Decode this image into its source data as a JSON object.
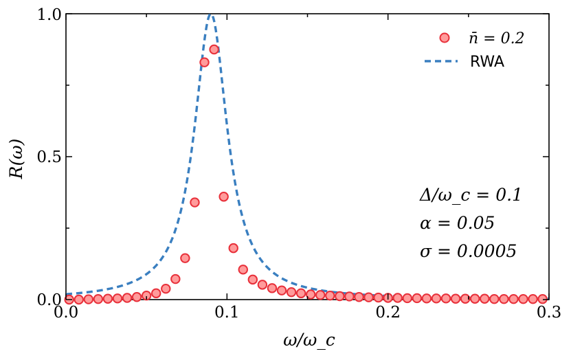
{
  "chart_data": {
    "type": "line",
    "title": "",
    "xlabel": "ω/ω_c",
    "ylabel": "R(ω)",
    "xlim": [
      0.0,
      0.3
    ],
    "ylim": [
      0.0,
      1.0
    ],
    "x_ticks": [
      0.0,
      0.1,
      0.2,
      0.3
    ],
    "x_tick_labels": [
      "0.0",
      "0.1",
      "0.2",
      "0.3"
    ],
    "y_ticks": [
      0.0,
      0.5,
      1.0
    ],
    "y_tick_labels": [
      "0.0",
      "0.5",
      "1.0"
    ],
    "grid": false,
    "legend_position": "top-right",
    "series": [
      {
        "name": "n̄ = 0.2",
        "kind": "scatter",
        "color": "#ff9b9b",
        "edge_color": "#e8303a",
        "x": [
          0.002,
          0.008,
          0.014,
          0.02,
          0.026,
          0.032,
          0.038,
          0.044,
          0.05,
          0.056,
          0.062,
          0.068,
          0.074,
          0.08,
          0.086,
          0.092,
          0.098,
          0.104,
          0.11,
          0.116,
          0.122,
          0.128,
          0.134,
          0.14,
          0.146,
          0.152,
          0.158,
          0.164,
          0.17,
          0.176,
          0.182,
          0.188,
          0.194,
          0.2,
          0.206,
          0.212,
          0.218,
          0.224,
          0.23,
          0.236,
          0.242,
          0.248,
          0.254,
          0.26,
          0.266,
          0.272,
          0.278,
          0.284,
          0.29,
          0.296
        ],
        "y": [
          0.0,
          0.0,
          0.001,
          0.002,
          0.003,
          0.004,
          0.006,
          0.009,
          0.014,
          0.022,
          0.038,
          0.072,
          0.145,
          0.34,
          0.83,
          0.875,
          0.36,
          0.18,
          0.105,
          0.07,
          0.052,
          0.04,
          0.032,
          0.026,
          0.022,
          0.018,
          0.016,
          0.014,
          0.012,
          0.011,
          0.009,
          0.008,
          0.007,
          0.006,
          0.006,
          0.005,
          0.005,
          0.004,
          0.004,
          0.004,
          0.003,
          0.003,
          0.003,
          0.003,
          0.002,
          0.002,
          0.002,
          0.002,
          0.002,
          0.002
        ]
      },
      {
        "name": "RWA",
        "kind": "line",
        "style": "dashed",
        "color": "#3a7fc0",
        "model": "lorentzian",
        "center": 0.09,
        "half_width": 0.0125,
        "peak": 1.0
      }
    ],
    "annotations": [
      "Δ/ω_c = 0.1",
      "α = 0.05",
      "σ = 0.0005"
    ]
  }
}
